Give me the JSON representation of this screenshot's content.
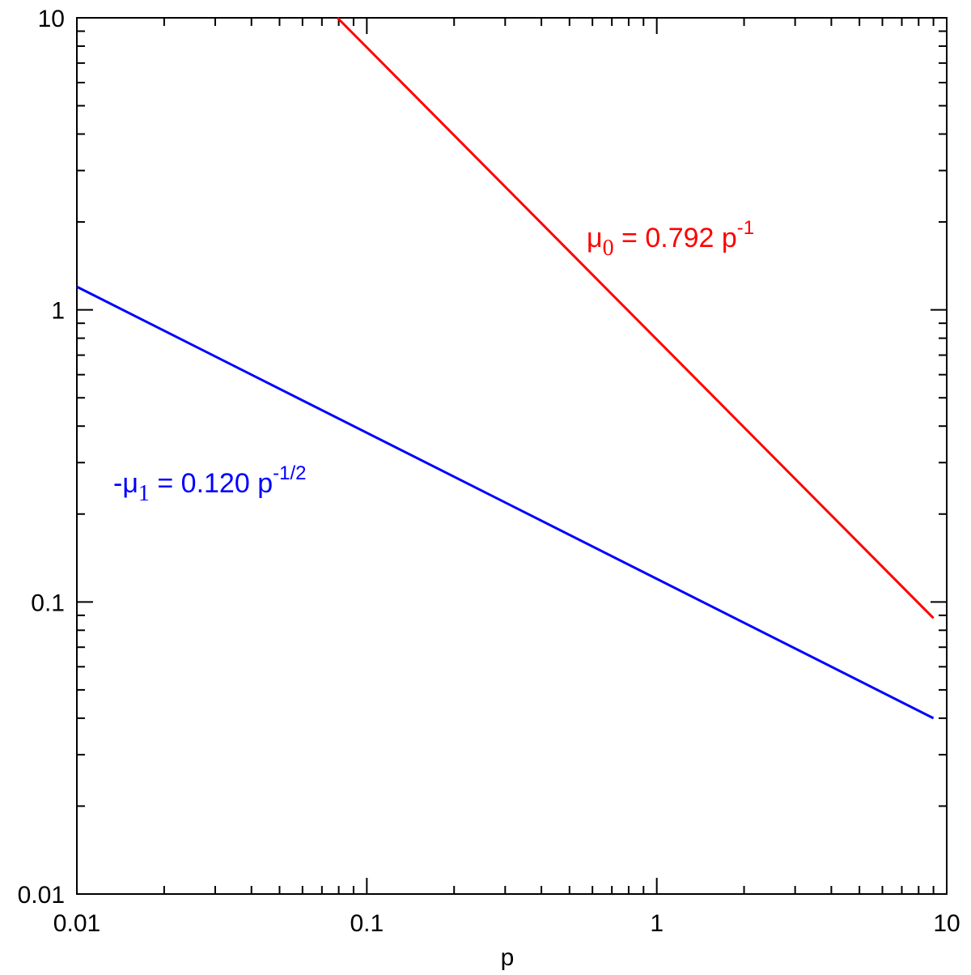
{
  "chart_data": {
    "type": "line",
    "log_x": true,
    "log_y": true,
    "xlabel": "p",
    "xlim": [
      0.01,
      10
    ],
    "ylim": [
      0.01,
      10
    ],
    "xticks": [
      0.01,
      0.1,
      1,
      10
    ],
    "yticks": [
      0.01,
      0.1,
      1,
      10
    ],
    "xminorticks": [
      0.02,
      0.03,
      0.04,
      0.05,
      0.06,
      0.07,
      0.08,
      0.09,
      0.2,
      0.3,
      0.4,
      0.5,
      0.6,
      0.7,
      0.8,
      0.9,
      2,
      3,
      4,
      5,
      6,
      7,
      8,
      9
    ],
    "yminorticks": [
      0.02,
      0.03,
      0.04,
      0.05,
      0.06,
      0.07,
      0.08,
      0.09,
      0.2,
      0.3,
      0.4,
      0.5,
      0.6,
      0.7,
      0.8,
      0.9,
      2,
      3,
      4,
      5,
      6,
      7,
      8,
      9
    ],
    "series": [
      {
        "color": "#ff0000",
        "x": [
          0.0792,
          9
        ],
        "values": [
          10,
          0.088
        ]
      },
      {
        "color": "#0000ff",
        "x": [
          0.01,
          9
        ],
        "values": [
          1.2,
          0.04
        ]
      }
    ],
    "annotations": [
      {
        "color": "#ff0000",
        "base": "μ",
        "sub": "0",
        "rest": " = 0.792 p",
        "sup": "-1"
      },
      {
        "color": "#0000ff",
        "base": "-μ",
        "sub": "1",
        "rest": " = 0.120 p",
        "sup": "-1/2"
      }
    ]
  }
}
